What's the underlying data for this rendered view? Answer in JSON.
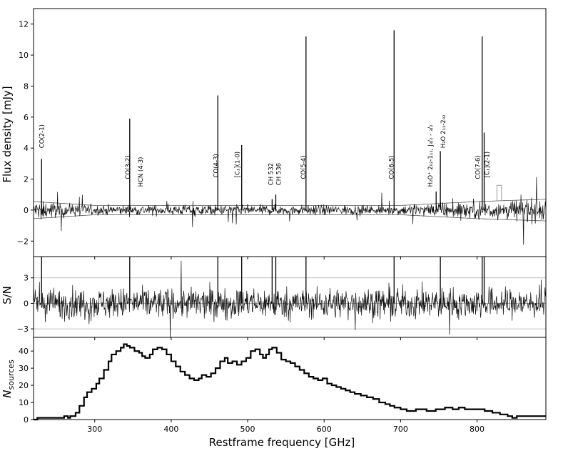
{
  "chart_data": [
    {
      "type": "line",
      "panel": "flux",
      "ylabel": "Flux density [mJy]",
      "xlim": [
        220,
        890
      ],
      "ylim": [
        -3,
        13
      ],
      "x_ticks": [
        300,
        400,
        500,
        600,
        700,
        800
      ],
      "y_ticks": [
        -2,
        0,
        2,
        4,
        6,
        8,
        10,
        12
      ],
      "y_tick_labels": [
        "−2",
        "0",
        "2",
        "4",
        "6",
        "8",
        "10",
        "12"
      ],
      "grid": false,
      "noise_level": 0.3,
      "error_envelope": [
        {
          "x": 220,
          "upper": 0.55,
          "lower": -0.55
        },
        {
          "x": 300,
          "upper": 0.3,
          "lower": -0.3
        },
        {
          "x": 700,
          "upper": 0.3,
          "lower": -0.3
        },
        {
          "x": 800,
          "upper": 0.55,
          "lower": -0.55
        },
        {
          "x": 890,
          "upper": 0.7,
          "lower": -0.7
        }
      ],
      "lines": [
        {
          "name": "CO(2-1)",
          "x": 230.5,
          "peak": 3.3
        },
        {
          "name": "CO(3-2)",
          "x": 345.8,
          "peak": 5.9
        },
        {
          "name": "HCN (4-3)",
          "x": 354.5,
          "peak": 0.0
        },
        {
          "name": "CO(4-3)",
          "x": 461.0,
          "peak": 7.4
        },
        {
          "name": "[C₁](1-0)",
          "x": 492.2,
          "peak": 4.2
        },
        {
          "name": "CH 532",
          "x": 532.0,
          "peak": 0.7
        },
        {
          "name": "CH 536",
          "x": 536.8,
          "peak": 1.0
        },
        {
          "name": "CO(5-4)",
          "x": 576.3,
          "peak": 11.2
        },
        {
          "name": "CO(6-5)",
          "x": 691.5,
          "peak": 11.6
        },
        {
          "name": "H₂O⁺ 2₀₂-1₁₁, J₃/₂ - ₃/₂",
          "x": 746.5,
          "peak": 1.2
        },
        {
          "name": "H₂O 2₁₁-2₀₂",
          "x": 752.0,
          "peak": 3.8
        },
        {
          "name": "CO(7-6)",
          "x": 806.7,
          "peak": 11.2
        },
        {
          "name": "[C₁](2-1)",
          "x": 809.3,
          "peak": 5.0
        }
      ],
      "bump": {
        "x_start": 826,
        "x_end": 832,
        "value": 1.6
      }
    },
    {
      "type": "line",
      "panel": "snr",
      "ylabel": "S/N",
      "xlim": [
        220,
        890
      ],
      "ylim": [
        -4,
        5.5
      ],
      "y_ticks": [
        -3,
        0,
        3
      ],
      "y_tick_labels": [
        "−3",
        "0",
        "3"
      ],
      "reference_lines": [
        -3,
        0,
        3
      ],
      "noise_level": 1.0,
      "spikes": [
        {
          "x": 230.5,
          "value": 5.5
        },
        {
          "x": 345.8,
          "value": 5.5
        },
        {
          "x": 461.0,
          "value": 5.5
        },
        {
          "x": 492.2,
          "value": 5.5
        },
        {
          "x": 532.0,
          "value": 5.5
        },
        {
          "x": 536.8,
          "value": 5.5
        },
        {
          "x": 576.3,
          "value": 5.5
        },
        {
          "x": 691.5,
          "value": 5.5
        },
        {
          "x": 752.0,
          "value": 5.5
        },
        {
          "x": 806.7,
          "value": 5.5
        },
        {
          "x": 809.3,
          "value": 5.5
        }
      ]
    },
    {
      "type": "line",
      "panel": "nsources",
      "xlabel": "Restframe frequency [GHz]",
      "ylabel_main": "N",
      "ylabel_sub": "sources",
      "xlim": [
        220,
        890
      ],
      "ylim": [
        0,
        48
      ],
      "x_ticks": [
        300,
        400,
        500,
        600,
        700,
        800
      ],
      "y_ticks": [
        0,
        10,
        20,
        30,
        40
      ],
      "line_style": "step",
      "series": [
        {
          "x": 220,
          "y": 0
        },
        {
          "x": 225,
          "y": 1
        },
        {
          "x": 260,
          "y": 2
        },
        {
          "x": 265,
          "y": 1
        },
        {
          "x": 268,
          "y": 2
        },
        {
          "x": 275,
          "y": 4
        },
        {
          "x": 280,
          "y": 8
        },
        {
          "x": 286,
          "y": 13
        },
        {
          "x": 290,
          "y": 16
        },
        {
          "x": 296,
          "y": 18
        },
        {
          "x": 302,
          "y": 21
        },
        {
          "x": 306,
          "y": 24
        },
        {
          "x": 312,
          "y": 29
        },
        {
          "x": 318,
          "y": 34
        },
        {
          "x": 322,
          "y": 38
        },
        {
          "x": 328,
          "y": 40
        },
        {
          "x": 334,
          "y": 42
        },
        {
          "x": 338,
          "y": 44
        },
        {
          "x": 342,
          "y": 43
        },
        {
          "x": 346,
          "y": 42
        },
        {
          "x": 352,
          "y": 40
        },
        {
          "x": 358,
          "y": 39
        },
        {
          "x": 362,
          "y": 37
        },
        {
          "x": 366,
          "y": 36
        },
        {
          "x": 372,
          "y": 38
        },
        {
          "x": 376,
          "y": 41
        },
        {
          "x": 382,
          "y": 42
        },
        {
          "x": 388,
          "y": 41
        },
        {
          "x": 394,
          "y": 38
        },
        {
          "x": 400,
          "y": 34
        },
        {
          "x": 406,
          "y": 31
        },
        {
          "x": 412,
          "y": 28
        },
        {
          "x": 418,
          "y": 26
        },
        {
          "x": 424,
          "y": 24
        },
        {
          "x": 430,
          "y": 23
        },
        {
          "x": 436,
          "y": 24
        },
        {
          "x": 440,
          "y": 26
        },
        {
          "x": 446,
          "y": 25
        },
        {
          "x": 452,
          "y": 27
        },
        {
          "x": 458,
          "y": 30
        },
        {
          "x": 464,
          "y": 34
        },
        {
          "x": 470,
          "y": 36
        },
        {
          "x": 474,
          "y": 33
        },
        {
          "x": 480,
          "y": 34
        },
        {
          "x": 486,
          "y": 32
        },
        {
          "x": 492,
          "y": 34
        },
        {
          "x": 498,
          "y": 36
        },
        {
          "x": 504,
          "y": 40
        },
        {
          "x": 510,
          "y": 41
        },
        {
          "x": 516,
          "y": 38
        },
        {
          "x": 520,
          "y": 36
        },
        {
          "x": 524,
          "y": 38
        },
        {
          "x": 528,
          "y": 41
        },
        {
          "x": 532,
          "y": 42
        },
        {
          "x": 538,
          "y": 39
        },
        {
          "x": 544,
          "y": 35
        },
        {
          "x": 550,
          "y": 34
        },
        {
          "x": 556,
          "y": 33
        },
        {
          "x": 562,
          "y": 31
        },
        {
          "x": 568,
          "y": 29
        },
        {
          "x": 574,
          "y": 27
        },
        {
          "x": 580,
          "y": 25
        },
        {
          "x": 586,
          "y": 24
        },
        {
          "x": 592,
          "y": 23
        },
        {
          "x": 598,
          "y": 24
        },
        {
          "x": 604,
          "y": 21
        },
        {
          "x": 610,
          "y": 20
        },
        {
          "x": 616,
          "y": 19
        },
        {
          "x": 622,
          "y": 18
        },
        {
          "x": 628,
          "y": 17
        },
        {
          "x": 634,
          "y": 16
        },
        {
          "x": 640,
          "y": 15
        },
        {
          "x": 648,
          "y": 14
        },
        {
          "x": 656,
          "y": 13
        },
        {
          "x": 664,
          "y": 12
        },
        {
          "x": 672,
          "y": 10
        },
        {
          "x": 680,
          "y": 9
        },
        {
          "x": 686,
          "y": 8
        },
        {
          "x": 692,
          "y": 7
        },
        {
          "x": 700,
          "y": 6
        },
        {
          "x": 708,
          "y": 5
        },
        {
          "x": 720,
          "y": 6
        },
        {
          "x": 734,
          "y": 5
        },
        {
          "x": 746,
          "y": 6
        },
        {
          "x": 758,
          "y": 7
        },
        {
          "x": 768,
          "y": 6
        },
        {
          "x": 776,
          "y": 7
        },
        {
          "x": 784,
          "y": 6
        },
        {
          "x": 800,
          "y": 6
        },
        {
          "x": 810,
          "y": 5
        },
        {
          "x": 820,
          "y": 4
        },
        {
          "x": 830,
          "y": 3
        },
        {
          "x": 840,
          "y": 2
        },
        {
          "x": 846,
          "y": 1
        },
        {
          "x": 852,
          "y": 2
        },
        {
          "x": 890,
          "y": 2
        }
      ]
    }
  ]
}
